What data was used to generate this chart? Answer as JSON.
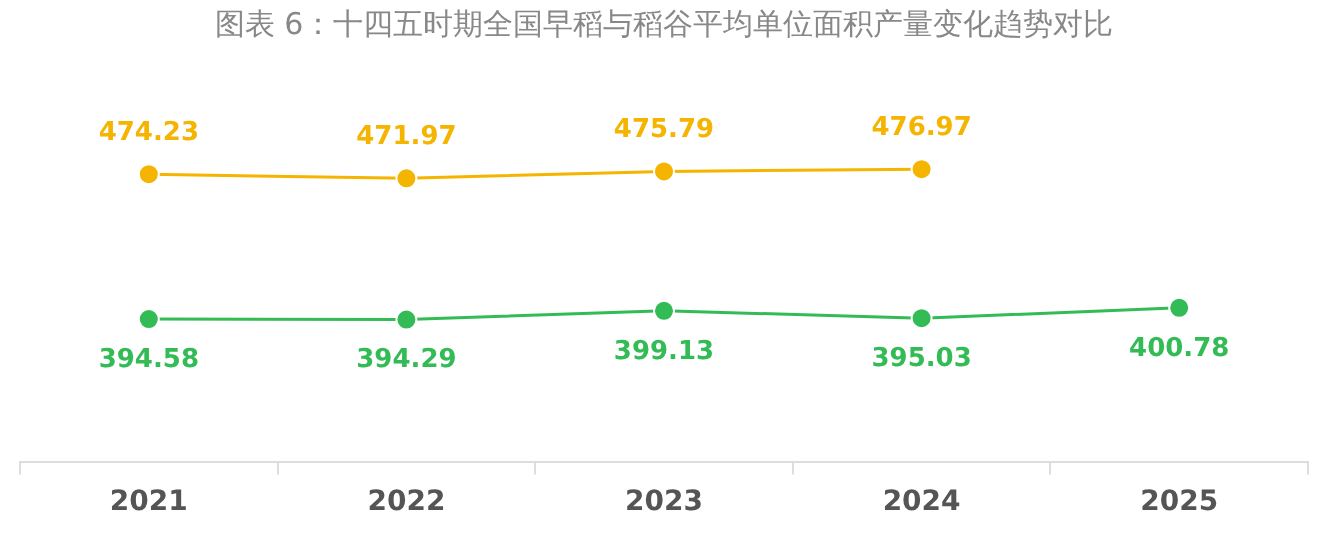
{
  "chart_data": {
    "type": "line",
    "title": "图表 6：十四五时期全国早稻与稻谷平均单位面积产量变化趋势对比",
    "categories": [
      "2021",
      "2022",
      "2023",
      "2024",
      "2025"
    ],
    "series": [
      {
        "color": "#f5b400",
        "values": [
          474.23,
          471.97,
          475.79,
          476.97,
          null
        ]
      },
      {
        "color": "#33bb55",
        "values": [
          394.58,
          394.29,
          399.13,
          395.03,
          400.78
        ]
      }
    ],
    "data_labels": true,
    "grid": false,
    "legend": false,
    "marker": "circle",
    "line_style": "solid"
  }
}
